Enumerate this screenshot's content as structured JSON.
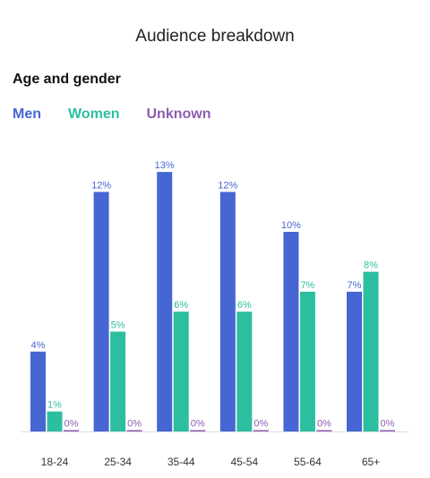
{
  "title": "Audience breakdown",
  "subtitle": "Age and gender",
  "colors": {
    "men": "#4666d4",
    "women": "#2bbf9f",
    "unknown": "#8e5db3",
    "axis": "#dddddd"
  },
  "chart_data": {
    "type": "bar",
    "categories": [
      "18-24",
      "25-34",
      "35-44",
      "45-54",
      "55-64",
      "65+"
    ],
    "series": [
      {
        "name": "Men",
        "values": [
          4,
          12,
          13,
          12,
          10,
          7
        ],
        "labels": [
          "4%",
          "12%",
          "13%",
          "12%",
          "10%",
          "7%"
        ]
      },
      {
        "name": "Women",
        "values": [
          1,
          5,
          6,
          6,
          7,
          8
        ],
        "labels": [
          "1%",
          "5%",
          "6%",
          "6%",
          "7%",
          "8%"
        ]
      },
      {
        "name": "Unknown",
        "values": [
          0,
          0,
          0,
          0,
          0,
          0
        ],
        "labels": [
          "0%",
          "0%",
          "0%",
          "0%",
          "0%",
          "0%"
        ]
      }
    ],
    "legend": "top-left",
    "grid": false
  }
}
